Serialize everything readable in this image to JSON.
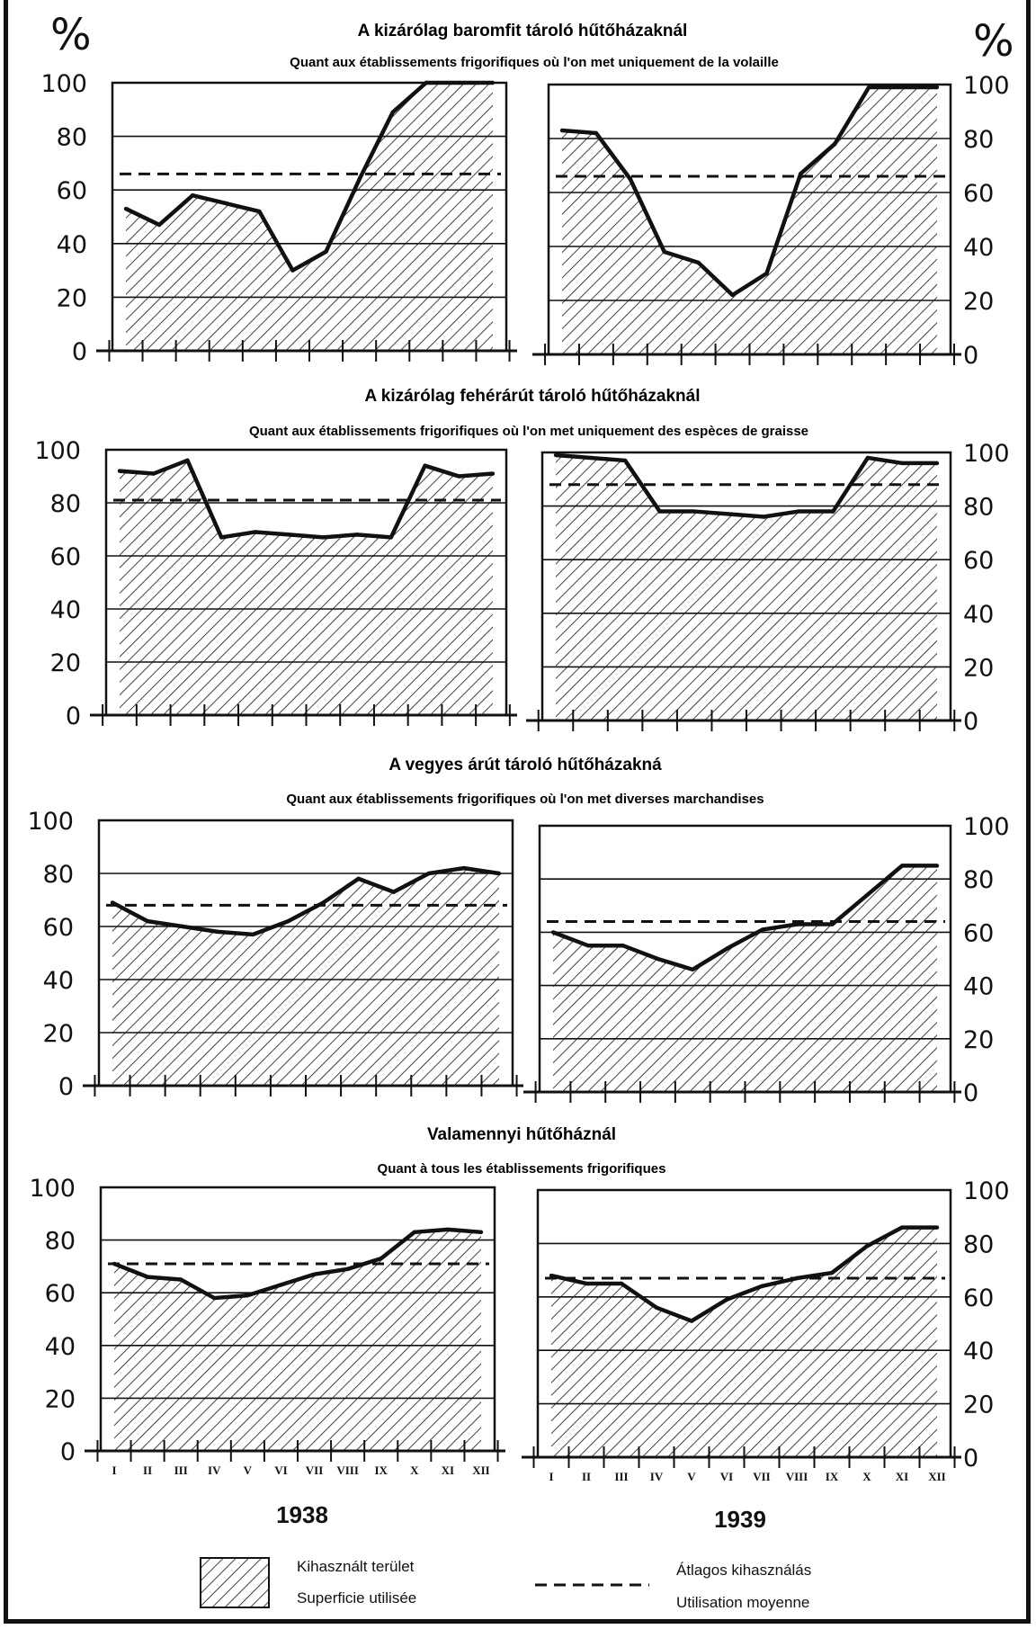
{
  "percent_sign": "%",
  "years": [
    "1938",
    "1939"
  ],
  "months": [
    "I",
    "II",
    "III",
    "IV",
    "V",
    "VI",
    "VII",
    "VIII",
    "IX",
    "X",
    "XI",
    "XII"
  ],
  "legend": {
    "area_hu": "Kihasznált terület",
    "area_fr": "Superficie utilisée",
    "avg_hu": "Átlagos kihasználás",
    "avg_fr": "Utilisation moyenne"
  },
  "colors": {
    "ink": "#111111",
    "paper": "#ffffff"
  },
  "chart_data": [
    {
      "type": "area",
      "title": "A kizárólag baromfit tároló hűtőházaknál",
      "subtitle": "Quant aux établissements frigorifiques où l'on met uniquement de la volaille",
      "ylim": [
        0,
        100
      ],
      "yticks": [
        0,
        20,
        40,
        60,
        80,
        100
      ],
      "categories": [
        "I",
        "II",
        "III",
        "IV",
        "V",
        "VI",
        "VII",
        "VIII",
        "IX",
        "X",
        "XI",
        "XII"
      ],
      "series": [
        {
          "year": "1938",
          "values": [
            53,
            47,
            58,
            55,
            52,
            30,
            37,
            64,
            89,
            100,
            100,
            100
          ],
          "average": 66
        },
        {
          "year": "1939",
          "values": [
            83,
            82,
            65,
            38,
            34,
            22,
            30,
            67,
            78,
            99,
            99,
            99
          ],
          "average": 66
        }
      ]
    },
    {
      "type": "area",
      "title": "A kizárólag fehérárút tároló hűtőházaknál",
      "subtitle": "Quant aux établissements frigorifiques où l'on met uniquement des espèces de graisse",
      "ylim": [
        0,
        100
      ],
      "yticks": [
        0,
        20,
        40,
        60,
        80,
        100
      ],
      "categories": [
        "I",
        "II",
        "III",
        "IV",
        "V",
        "VI",
        "VII",
        "VIII",
        "IX",
        "X",
        "XI",
        "XII"
      ],
      "series": [
        {
          "year": "1938",
          "values": [
            92,
            91,
            96,
            67,
            69,
            68,
            67,
            68,
            67,
            94,
            90,
            91
          ],
          "average": 81
        },
        {
          "year": "1939",
          "values": [
            99,
            98,
            97,
            78,
            78,
            77,
            76,
            78,
            78,
            98,
            96,
            96
          ],
          "average": 88
        }
      ]
    },
    {
      "type": "area",
      "title": "A vegyes árút tároló hűtőházakná",
      "subtitle": "Quant aux établissements frigorifiques où l'on met diverses marchandises",
      "ylim": [
        0,
        100
      ],
      "yticks": [
        0,
        20,
        40,
        60,
        80,
        100
      ],
      "categories": [
        "I",
        "II",
        "III",
        "IV",
        "V",
        "VI",
        "VII",
        "VIII",
        "IX",
        "X",
        "XI",
        "XII"
      ],
      "series": [
        {
          "year": "1938",
          "values": [
            69,
            62,
            60,
            58,
            57,
            62,
            69,
            78,
            73,
            80,
            82,
            80
          ],
          "average": 68
        },
        {
          "year": "1939",
          "values": [
            60,
            55,
            55,
            50,
            46,
            54,
            61,
            63,
            63,
            74,
            85,
            85
          ],
          "average": 64
        }
      ]
    },
    {
      "type": "area",
      "title": "Valamennyi hűtőháznál",
      "subtitle": "Quant à tous les établissements frigorifiques",
      "ylim": [
        0,
        100
      ],
      "yticks": [
        0,
        20,
        40,
        60,
        80,
        100
      ],
      "categories": [
        "I",
        "II",
        "III",
        "IV",
        "V",
        "VI",
        "VII",
        "VIII",
        "IX",
        "X",
        "XI",
        "XII"
      ],
      "series": [
        {
          "year": "1938",
          "values": [
            71,
            66,
            65,
            58,
            59,
            63,
            67,
            69,
            73,
            83,
            84,
            83
          ],
          "average": 71
        },
        {
          "year": "1939",
          "values": [
            68,
            65,
            65,
            56,
            51,
            59,
            64,
            67,
            69,
            79,
            86,
            86
          ],
          "average": 67
        }
      ]
    }
  ]
}
